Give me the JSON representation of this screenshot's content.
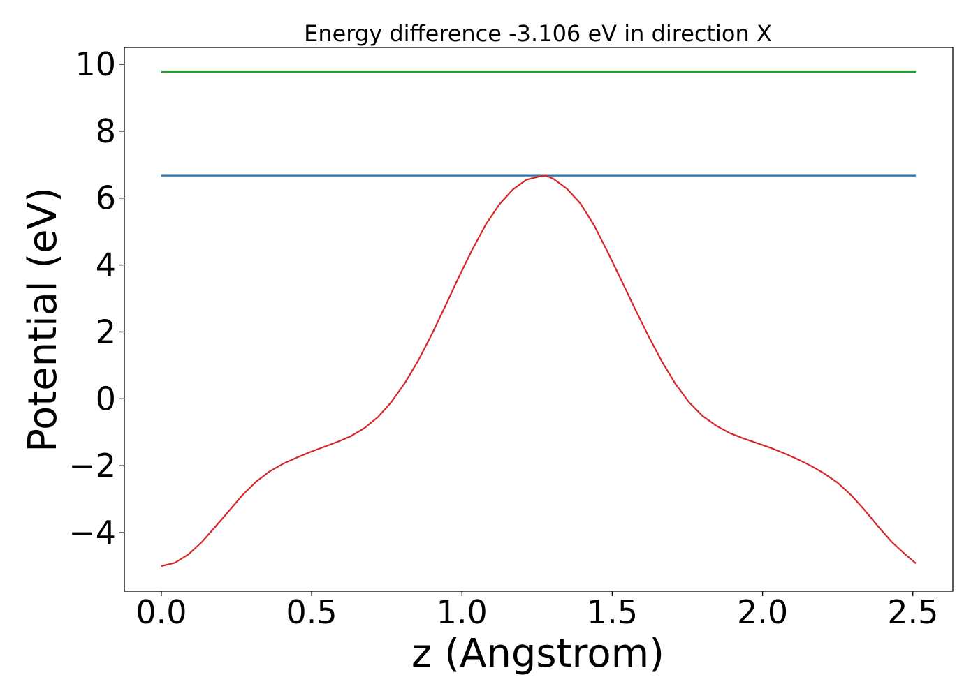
{
  "chart_data": {
    "type": "line",
    "title": "Energy difference -3.106 eV in direction X",
    "xlabel": "z (Angstrom)",
    "ylabel": "Potential (eV)",
    "xlim": [
      -0.123,
      2.633
    ],
    "ylim": [
      -5.75,
      10.5
    ],
    "x_ticks": [
      0.0,
      0.5,
      1.0,
      1.5,
      2.0,
      2.5
    ],
    "x_tick_labels": [
      "0.0",
      "0.5",
      "1.0",
      "1.5",
      "2.0",
      "2.5"
    ],
    "y_ticks": [
      -4,
      -2,
      0,
      2,
      4,
      6,
      8,
      10
    ],
    "y_tick_labels": [
      "−4",
      "−2",
      "0",
      "2",
      "4",
      "6",
      "8",
      "10"
    ],
    "grid": false,
    "series": [
      {
        "color": "#2ca02c",
        "x": [
          0.0,
          2.51
        ],
        "y": [
          9.77,
          9.77
        ]
      },
      {
        "color": "#1f77b4",
        "x": [
          0.0,
          2.51
        ],
        "y": [
          6.67,
          6.67
        ]
      },
      {
        "color": "#d62728",
        "x": [
          0.0,
          0.045,
          0.09,
          0.135,
          0.18,
          0.225,
          0.27,
          0.315,
          0.36,
          0.405,
          0.45,
          0.495,
          0.54,
          0.585,
          0.63,
          0.675,
          0.72,
          0.765,
          0.81,
          0.855,
          0.9,
          0.945,
          0.99,
          1.035,
          1.08,
          1.125,
          1.17,
          1.215,
          1.26,
          1.28,
          1.305,
          1.35,
          1.395,
          1.44,
          1.485,
          1.53,
          1.575,
          1.62,
          1.665,
          1.71,
          1.755,
          1.8,
          1.845,
          1.89,
          1.935,
          1.98,
          2.025,
          2.07,
          2.115,
          2.16,
          2.205,
          2.25,
          2.295,
          2.34,
          2.385,
          2.43,
          2.475,
          2.51
        ],
        "y": [
          -5.0,
          -4.9,
          -4.65,
          -4.28,
          -3.82,
          -3.35,
          -2.88,
          -2.48,
          -2.17,
          -1.94,
          -1.76,
          -1.59,
          -1.44,
          -1.29,
          -1.12,
          -0.88,
          -0.55,
          -0.1,
          0.47,
          1.15,
          1.93,
          2.78,
          3.65,
          4.47,
          5.22,
          5.82,
          6.26,
          6.55,
          6.65,
          6.67,
          6.57,
          6.27,
          5.83,
          5.18,
          4.38,
          3.55,
          2.7,
          1.88,
          1.12,
          0.45,
          -0.1,
          -0.51,
          -0.8,
          -1.02,
          -1.18,
          -1.32,
          -1.46,
          -1.62,
          -1.8,
          -2.0,
          -2.23,
          -2.51,
          -2.88,
          -3.33,
          -3.82,
          -4.28,
          -4.65,
          -4.92
        ]
      }
    ]
  }
}
